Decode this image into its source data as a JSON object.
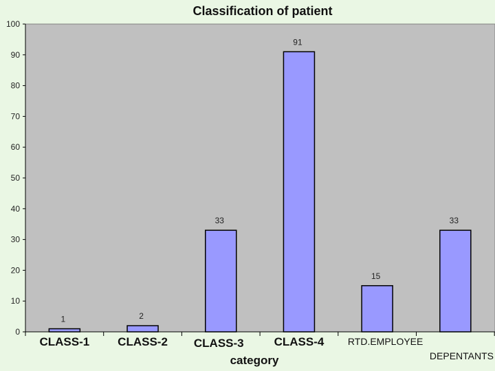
{
  "chart_data": {
    "type": "bar",
    "title": "Classification of patient",
    "xlabel": "category",
    "ylabel": "",
    "categories": [
      "CLASS-1",
      "CLASS-2",
      "CLASS-3",
      "CLASS-4",
      "RTD.EMPLOYEE",
      "DEPENTANTS"
    ],
    "values": [
      1,
      2,
      33,
      91,
      15,
      33
    ],
    "ylim": [
      0,
      100
    ],
    "yticks": [
      0,
      10,
      20,
      30,
      40,
      50,
      60,
      70,
      80,
      90,
      100
    ],
    "grid": false,
    "legend": "none",
    "colors": {
      "bar_fill": "#9999ff",
      "bar_stroke": "#000000",
      "plot_background": "#c0c0c0",
      "page_background": "#eaf7e4"
    }
  }
}
